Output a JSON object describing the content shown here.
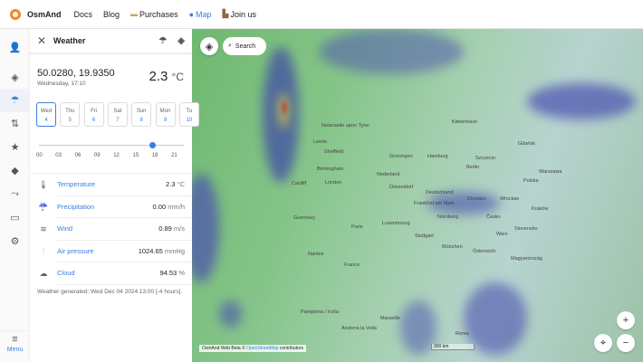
{
  "topbar": {
    "brand": "OsmAnd",
    "links": [
      "Docs",
      "Blog",
      "Purchases",
      "Map",
      "Join us"
    ],
    "active": "Map"
  },
  "rail": {
    "menu_label": "Menu"
  },
  "panel": {
    "title": "Weather",
    "coords": "50.0280, 19.9350",
    "datetime": "Wednesday, 17:10",
    "temp_value": "2.3",
    "temp_unit": "°C",
    "days": [
      {
        "d": "Wed",
        "n": "4"
      },
      {
        "d": "Thu",
        "n": "5"
      },
      {
        "d": "Fri",
        "n": "6"
      },
      {
        "d": "Sat",
        "n": "7"
      },
      {
        "d": "Sun",
        "n": "8"
      },
      {
        "d": "Mon",
        "n": "9"
      },
      {
        "d": "Tu",
        "n": "10"
      }
    ],
    "hours": [
      "00",
      "03",
      "06",
      "09",
      "12",
      "15",
      "18",
      "21"
    ],
    "slider_hour": 17.17,
    "rows": [
      {
        "label": "Temperature",
        "value": "2.3",
        "unit": "°C",
        "icon": "thermometer-icon"
      },
      {
        "label": "Precipitation",
        "value": "0.00",
        "unit": "mm/h",
        "icon": "rain-icon"
      },
      {
        "label": "Wind",
        "value": "0.89",
        "unit": "m/s",
        "icon": "wind-icon"
      },
      {
        "label": "Air pressure",
        "value": "1024.65",
        "unit": "mmHg",
        "icon": "pressure-icon"
      },
      {
        "label": "Cloud",
        "value": "94.53",
        "unit": "%",
        "icon": "cloud-icon"
      }
    ],
    "generated": "Weather generated: Wed Dec 04 2024 13:00 [-4 hours]."
  },
  "map": {
    "search_label": "Search",
    "attribution_prefix": "OsmAnd Web Beta ©",
    "attribution_link": "OpenStreetMap",
    "attribution_suffix": "contributors",
    "scale": "300 km",
    "labels": [
      "Newcastle upon Tyne",
      "Leeds",
      "Sheffield",
      "Birmingham",
      "London",
      "Cardiff",
      "København",
      "Hamburg",
      "Groningen",
      "Nederland",
      "Berlin",
      "Szczecin",
      "Gdańsk",
      "Warszawa",
      "Polska",
      "Deutschland",
      "Düsseldorf",
      "Frankfurt am Main",
      "Dresden",
      "Wrocław",
      "Kraków",
      "Paris",
      "Luxembourg",
      "Nürnberg",
      "Česko",
      "Stuttgart",
      "München",
      "Österreich",
      "Wien",
      "Slovensko",
      "Magyarország",
      "France",
      "Nantes",
      "Guernsey",
      "Marseille",
      "Roma",
      "Pamplona / Iruña",
      "Andorra la Vella"
    ]
  }
}
